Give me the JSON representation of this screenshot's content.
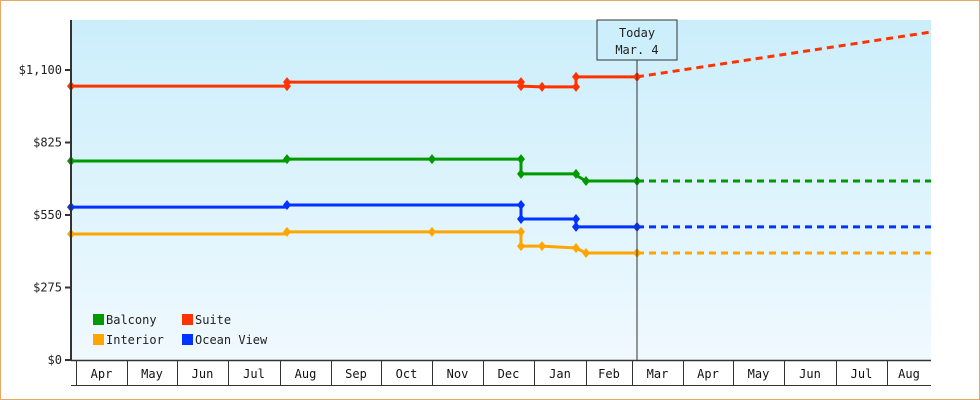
{
  "chart_data": {
    "type": "line",
    "title": "",
    "xlabel": "",
    "ylabel": "",
    "ylim": [
      0,
      1290
    ],
    "y_ticks": [
      {
        "value": 0,
        "label": "$0"
      },
      {
        "value": 275,
        "label": "$275"
      },
      {
        "value": 550,
        "label": "$550"
      },
      {
        "value": 825,
        "label": "$825"
      },
      {
        "value": 1100,
        "label": "$1,100"
      }
    ],
    "x_months": [
      "Apr",
      "May",
      "Jun",
      "Jul",
      "Aug",
      "Sep",
      "Oct",
      "Nov",
      "Dec",
      "Jan",
      "Feb",
      "Mar",
      "Apr",
      "May",
      "Jun",
      "Jul",
      "Aug"
    ],
    "x_month_edges": [
      76,
      127,
      177,
      228,
      280,
      331,
      381,
      432,
      483,
      534,
      586,
      632,
      683,
      733,
      784,
      836,
      887,
      931
    ],
    "grid": false,
    "legend_position": "bottom-left inside",
    "today_marker": {
      "line1": "Today",
      "line2": "Mar. 4",
      "x": 637
    },
    "series": [
      {
        "name": "Suite",
        "color": "#ff3300",
        "points": [
          [
            71,
            1039
          ],
          [
            287,
            1039
          ],
          [
            287,
            1054
          ],
          [
            521,
            1054
          ],
          [
            521,
            1039
          ],
          [
            542,
            1036
          ],
          [
            576,
            1036
          ],
          [
            576,
            1074
          ],
          [
            637,
            1074
          ]
        ],
        "markers": [
          [
            71,
            1039
          ],
          [
            287,
            1039
          ],
          [
            287,
            1054
          ],
          [
            521,
            1054
          ],
          [
            521,
            1039
          ],
          [
            542,
            1036
          ],
          [
            576,
            1036
          ],
          [
            576,
            1074
          ],
          [
            637,
            1074
          ]
        ],
        "projection": [
          [
            637,
            1074
          ],
          [
            931,
            1244
          ]
        ]
      },
      {
        "name": "Balcony",
        "color": "#009900",
        "points": [
          [
            71,
            755
          ],
          [
            287,
            755
          ],
          [
            287,
            762
          ],
          [
            432,
            762
          ],
          [
            521,
            762
          ],
          [
            521,
            706
          ],
          [
            576,
            706
          ],
          [
            576,
            701
          ],
          [
            586,
            679
          ],
          [
            637,
            679
          ]
        ],
        "markers": [
          [
            71,
            755
          ],
          [
            287,
            762
          ],
          [
            432,
            762
          ],
          [
            521,
            762
          ],
          [
            521,
            706
          ],
          [
            576,
            706
          ],
          [
            586,
            679
          ],
          [
            637,
            679
          ]
        ],
        "projection": [
          [
            637,
            679
          ],
          [
            931,
            679
          ]
        ]
      },
      {
        "name": "Ocean View",
        "color": "#0033ff",
        "points": [
          [
            71,
            580
          ],
          [
            287,
            580
          ],
          [
            287,
            588
          ],
          [
            521,
            588
          ],
          [
            521,
            535
          ],
          [
            576,
            535
          ],
          [
            576,
            505
          ],
          [
            637,
            505
          ]
        ],
        "markers": [
          [
            71,
            580
          ],
          [
            287,
            588
          ],
          [
            521,
            588
          ],
          [
            521,
            535
          ],
          [
            576,
            535
          ],
          [
            576,
            505
          ],
          [
            637,
            505
          ]
        ],
        "projection": [
          [
            637,
            505
          ],
          [
            931,
            505
          ]
        ]
      },
      {
        "name": "Interior",
        "color": "#ffa500",
        "points": [
          [
            71,
            478
          ],
          [
            287,
            478
          ],
          [
            287,
            486
          ],
          [
            432,
            486
          ],
          [
            521,
            486
          ],
          [
            521,
            432
          ],
          [
            542,
            432
          ],
          [
            576,
            425
          ],
          [
            586,
            406
          ],
          [
            637,
            406
          ]
        ],
        "markers": [
          [
            71,
            478
          ],
          [
            287,
            486
          ],
          [
            432,
            486
          ],
          [
            521,
            486
          ],
          [
            521,
            432
          ],
          [
            542,
            432
          ],
          [
            576,
            425
          ],
          [
            586,
            406
          ],
          [
            637,
            406
          ]
        ],
        "projection": [
          [
            637,
            406
          ],
          [
            931,
            406
          ]
        ]
      }
    ],
    "legend": [
      {
        "name": "Balcony",
        "color": "#009900"
      },
      {
        "name": "Suite",
        "color": "#ff3300"
      },
      {
        "name": "Interior",
        "color": "#ffa500"
      },
      {
        "name": "Ocean View",
        "color": "#0033ff"
      }
    ]
  }
}
